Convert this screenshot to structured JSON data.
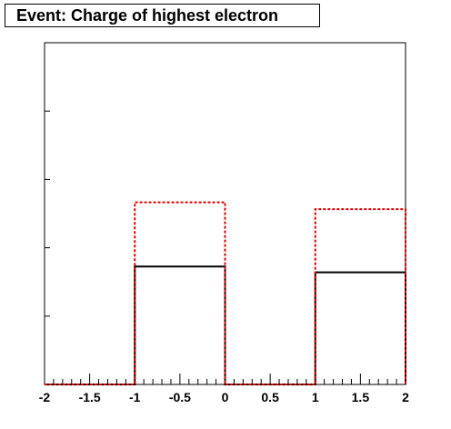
{
  "title": "Event: Charge of highest electron",
  "chart_data": {
    "type": "histogram",
    "title": "Event: Charge of highest electron",
    "xlabel": "",
    "ylabel": "",
    "xlim": [
      -2,
      2
    ],
    "ylim": [
      0,
      1.0
    ],
    "x_ticks": [
      -2,
      -1.5,
      -1,
      -0.5,
      0,
      0.5,
      1,
      1.5,
      2
    ],
    "x_tick_labels": [
      "-2",
      "-1.5",
      "-1",
      "-0.5",
      "0",
      "0.5",
      "1",
      "1.5",
      "2"
    ],
    "y_tick_labels_visible": false,
    "bin_edges": [
      -2,
      -1,
      0,
      1,
      2
    ],
    "series": [
      {
        "style": "solid",
        "color": "#000000",
        "values": [
          0,
          0.345,
          0,
          0.328
        ]
      },
      {
        "style": "dashed",
        "color": "#dd0000",
        "values": [
          0,
          0.533,
          0,
          0.513
        ]
      }
    ],
    "grid": false
  }
}
